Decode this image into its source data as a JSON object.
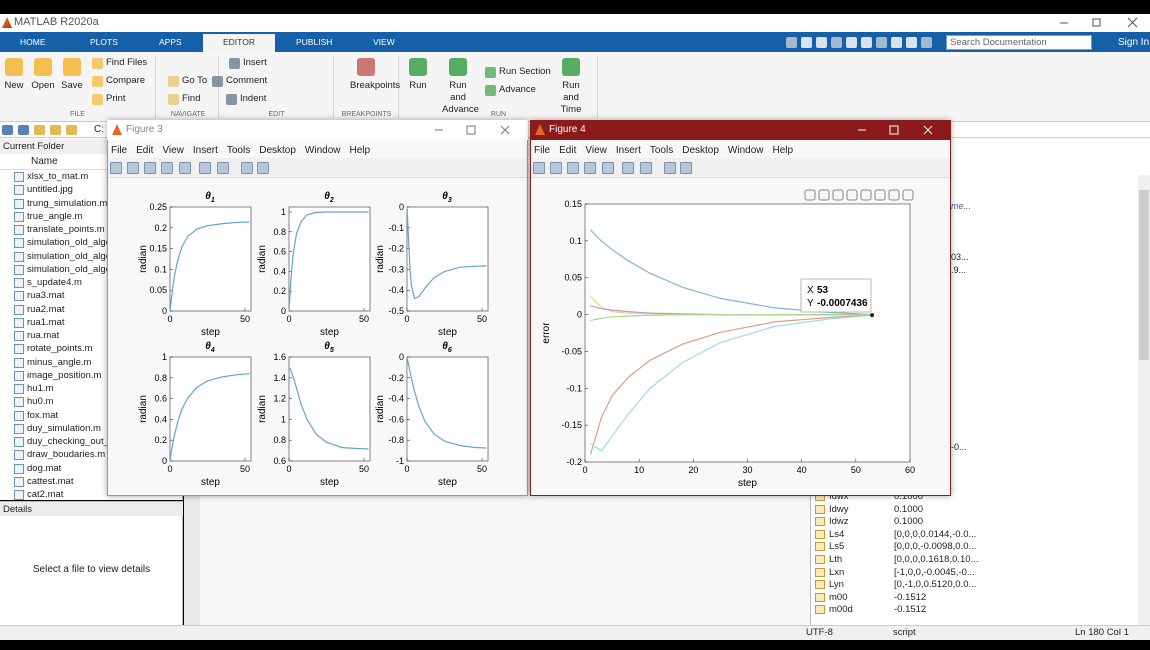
{
  "title_bar": {
    "title": "MATLAB R2020a"
  },
  "tabs": [
    "HOME",
    "PLOTS",
    "APPS",
    "EDITOR",
    "PUBLISH",
    "VIEW"
  ],
  "active_tab": 3,
  "search": {
    "placeholder": "Search Documentation"
  },
  "sign_in": "Sign In",
  "toolstrip": {
    "groups": [
      {
        "label": "FILE",
        "buttons": [
          "New",
          "Open",
          "Save",
          "Find Files",
          "Compare",
          "Print"
        ]
      },
      {
        "label": "NAVIGATE",
        "buttons": [
          "Go To",
          "Find"
        ]
      },
      {
        "label": "EDIT",
        "buttons": [
          "Insert",
          "Comment",
          "Indent"
        ]
      },
      {
        "label": "BREAKPOINTS",
        "buttons": [
          "Breakpoints"
        ]
      },
      {
        "label": "RUN",
        "buttons": [
          "Run",
          "Run and Advance",
          "Run Section",
          "Advance",
          "Run and Time"
        ]
      }
    ]
  },
  "address": "C:",
  "current_folder": {
    "header": "Current Folder",
    "column": "Name",
    "files": [
      "xlsx_to_mat.m",
      "untitled.jpg",
      "trung_simulation.m",
      "true_angle.m",
      "translate_points.m",
      "simulation_old_algo",
      "simulation_old_algo",
      "simulation_old_algo",
      "s_update4.m",
      "rua3.mat",
      "rua2.mat",
      "rua1.mat",
      "rua.mat",
      "rotate_points.m",
      "minus_angle.m",
      "image_position.m",
      "hu1.m",
      "hu0.m",
      "fox.mat",
      "duy_simulation.m",
      "duy_checking_out_c",
      "draw_boudaries.m",
      "dog.mat",
      "cattest.mat",
      "cat2.mat"
    ]
  },
  "details": {
    "header": "Details",
    "message": "Select a file to view details"
  },
  "right_fragments": [
    "me...",
    "03...",
    ".9...",
    "-0..."
  ],
  "workspace": [
    {
      "name": "Idwx",
      "value": "0.1000"
    },
    {
      "name": "Idwy",
      "value": "0.1000"
    },
    {
      "name": "Idwz",
      "value": "0.1000"
    },
    {
      "name": "Ls4",
      "value": "[0,0,0,0.0144,-0.0..."
    },
    {
      "name": "Ls5",
      "value": "[0,0,0,-0.0098,0.0..."
    },
    {
      "name": "Lth",
      "value": "[0,0,0,0.1618,0.10..."
    },
    {
      "name": "Lxn",
      "value": "[-1,0,0,-0.0045,-0..."
    },
    {
      "name": "Lyn",
      "value": "[0,-1,0,0.5120,0.0..."
    },
    {
      "name": "m00",
      "value": "-0.1512"
    },
    {
      "name": "m00d",
      "value": "-0.1512"
    }
  ],
  "status_bar": {
    "encoding": "UTF-8",
    "mode": "script",
    "position": "Ln 180 Col 1"
  },
  "figures": [
    {
      "title": "Figure 3",
      "menu": [
        "File",
        "Edit",
        "View",
        "Insert",
        "Tools",
        "Desktop",
        "Window",
        "Help"
      ],
      "plots": [
        {
          "type": "line",
          "title": [
            "θ",
            "1"
          ],
          "xlabel": "step",
          "ylabel": "radian",
          "color": "#5fa8cc",
          "xlim": [
            0,
            54
          ],
          "xticks": [
            0,
            50
          ],
          "ylim": [
            0,
            0.25
          ],
          "yticks": [
            0,
            0.05,
            0.1,
            0.15,
            0.2,
            0.25
          ],
          "x": [
            0,
            1,
            2,
            3,
            5,
            8,
            12,
            18,
            25,
            35,
            45,
            53
          ],
          "values": [
            0,
            0.03,
            0.06,
            0.085,
            0.12,
            0.155,
            0.18,
            0.197,
            0.205,
            0.21,
            0.213,
            0.214
          ]
        },
        {
          "type": "line",
          "title": [
            "θ",
            "2"
          ],
          "xlabel": "step",
          "ylabel": "radian",
          "color": "#5fa8cc",
          "xlim": [
            0,
            54
          ],
          "xticks": [
            0,
            50
          ],
          "ylim": [
            0,
            1.05
          ],
          "yticks": [
            0,
            0.2,
            0.4,
            0.6,
            0.8,
            1
          ],
          "x": [
            0,
            1,
            2,
            3,
            5,
            8,
            12,
            18,
            25,
            35,
            45,
            53
          ],
          "values": [
            0,
            0.25,
            0.45,
            0.6,
            0.78,
            0.9,
            0.97,
            0.995,
            1,
            1,
            1,
            1
          ]
        },
        {
          "type": "line",
          "title": [
            "θ",
            "3"
          ],
          "xlabel": "step",
          "ylabel": "radian",
          "color": "#5fa8cc",
          "xlim": [
            0,
            54
          ],
          "xticks": [
            0,
            50
          ],
          "ylim": [
            -0.5,
            0
          ],
          "yticks": [
            0,
            -0.1,
            -0.2,
            -0.3,
            -0.4,
            -0.5
          ],
          "x": [
            0,
            1,
            2,
            3,
            5,
            8,
            12,
            18,
            25,
            35,
            45,
            53
          ],
          "values": [
            0,
            -0.15,
            -0.3,
            -0.38,
            -0.44,
            -0.43,
            -0.39,
            -0.34,
            -0.31,
            -0.29,
            -0.285,
            -0.283
          ]
        },
        {
          "type": "line",
          "title": [
            "θ",
            "4"
          ],
          "xlabel": "step",
          "ylabel": "radian",
          "color": "#5fa8cc",
          "xlim": [
            0,
            54
          ],
          "xticks": [
            0,
            50
          ],
          "ylim": [
            0,
            1
          ],
          "yticks": [
            0,
            0.2,
            0.4,
            0.6,
            0.8,
            1
          ],
          "x": [
            0,
            1,
            2,
            3,
            5,
            8,
            12,
            18,
            25,
            35,
            45,
            53
          ],
          "values": [
            0,
            0.1,
            0.18,
            0.25,
            0.37,
            0.5,
            0.61,
            0.71,
            0.77,
            0.81,
            0.83,
            0.84
          ]
        },
        {
          "type": "line",
          "title": [
            "θ",
            "5"
          ],
          "xlabel": "step",
          "ylabel": "radian",
          "color": "#5fa8cc",
          "xlim": [
            0,
            54
          ],
          "xticks": [
            0,
            50
          ],
          "ylim": [
            0.6,
            1.6
          ],
          "yticks": [
            0.6,
            0.8,
            1,
            1.2,
            1.4,
            1.6
          ],
          "x": [
            0,
            1,
            2,
            3,
            5,
            8,
            12,
            18,
            25,
            35,
            45,
            53
          ],
          "values": [
            1.5,
            1.48,
            1.44,
            1.4,
            1.3,
            1.15,
            1,
            0.86,
            0.78,
            0.73,
            0.72,
            0.715
          ]
        },
        {
          "type": "line",
          "title": [
            "θ",
            "6"
          ],
          "xlabel": "step",
          "ylabel": "radian",
          "color": "#5fa8cc",
          "xlim": [
            0,
            54
          ],
          "xticks": [
            0,
            50
          ],
          "ylim": [
            -1,
            0
          ],
          "yticks": [
            0,
            -0.2,
            -0.4,
            -0.6,
            -0.8,
            -1
          ],
          "x": [
            0,
            1,
            2,
            3,
            5,
            8,
            12,
            18,
            25,
            35,
            45,
            53
          ],
          "values": [
            0,
            -0.07,
            -0.14,
            -0.21,
            -0.33,
            -0.48,
            -0.62,
            -0.74,
            -0.81,
            -0.85,
            -0.87,
            -0.875
          ]
        }
      ]
    },
    {
      "title": "Figure 4",
      "menu": [
        "File",
        "Edit",
        "View",
        "Insert",
        "Tools",
        "Desktop",
        "Window",
        "Help"
      ],
      "chart": {
        "type": "line",
        "xlabel": "step",
        "ylabel": "error",
        "xlim": [
          0,
          60
        ],
        "xticks": [
          0,
          10,
          20,
          30,
          40,
          50,
          60
        ],
        "ylim": [
          -0.2,
          0.15
        ],
        "yticks": [
          -0.2,
          -0.15,
          -0.1,
          -0.05,
          0,
          0.05,
          0.1,
          0.15
        ],
        "x": [
          1,
          3,
          5,
          8,
          12,
          18,
          25,
          35,
          45,
          53
        ],
        "series": [
          {
            "color": "#7fb8d4",
            "values": [
              0.115,
              0.1,
              0.088,
              0.073,
              0.056,
              0.037,
              0.022,
              0.009,
              0.003,
              0
            ]
          },
          {
            "color": "#d9a084",
            "values": [
              -0.19,
              -0.14,
              -0.11,
              -0.085,
              -0.062,
              -0.04,
              -0.024,
              -0.01,
              -0.004,
              -0.0007
            ]
          },
          {
            "color": "#9fdbe6",
            "values": [
              -0.175,
              -0.185,
              -0.165,
              -0.135,
              -0.1,
              -0.065,
              -0.038,
              -0.016,
              -0.006,
              -0.001
            ]
          },
          {
            "color": "#e6d879",
            "values": [
              0.025,
              0.01,
              0.004,
              0.002,
              0.001,
              0,
              0,
              0,
              0,
              0
            ]
          },
          {
            "color": "#c39ac3",
            "values": [
              0.012,
              0.008,
              0.006,
              0.004,
              0.002,
              0.001,
              0,
              0,
              0,
              0
            ]
          },
          {
            "color": "#a9d490",
            "values": [
              -0.008,
              -0.005,
              -0.003,
              -0.002,
              -0.001,
              0,
              0,
              0,
              0,
              0
            ]
          }
        ],
        "datatip": {
          "x_label": "X",
          "x": 53,
          "y_label": "Y",
          "y": -0.0007436
        }
      }
    }
  ]
}
